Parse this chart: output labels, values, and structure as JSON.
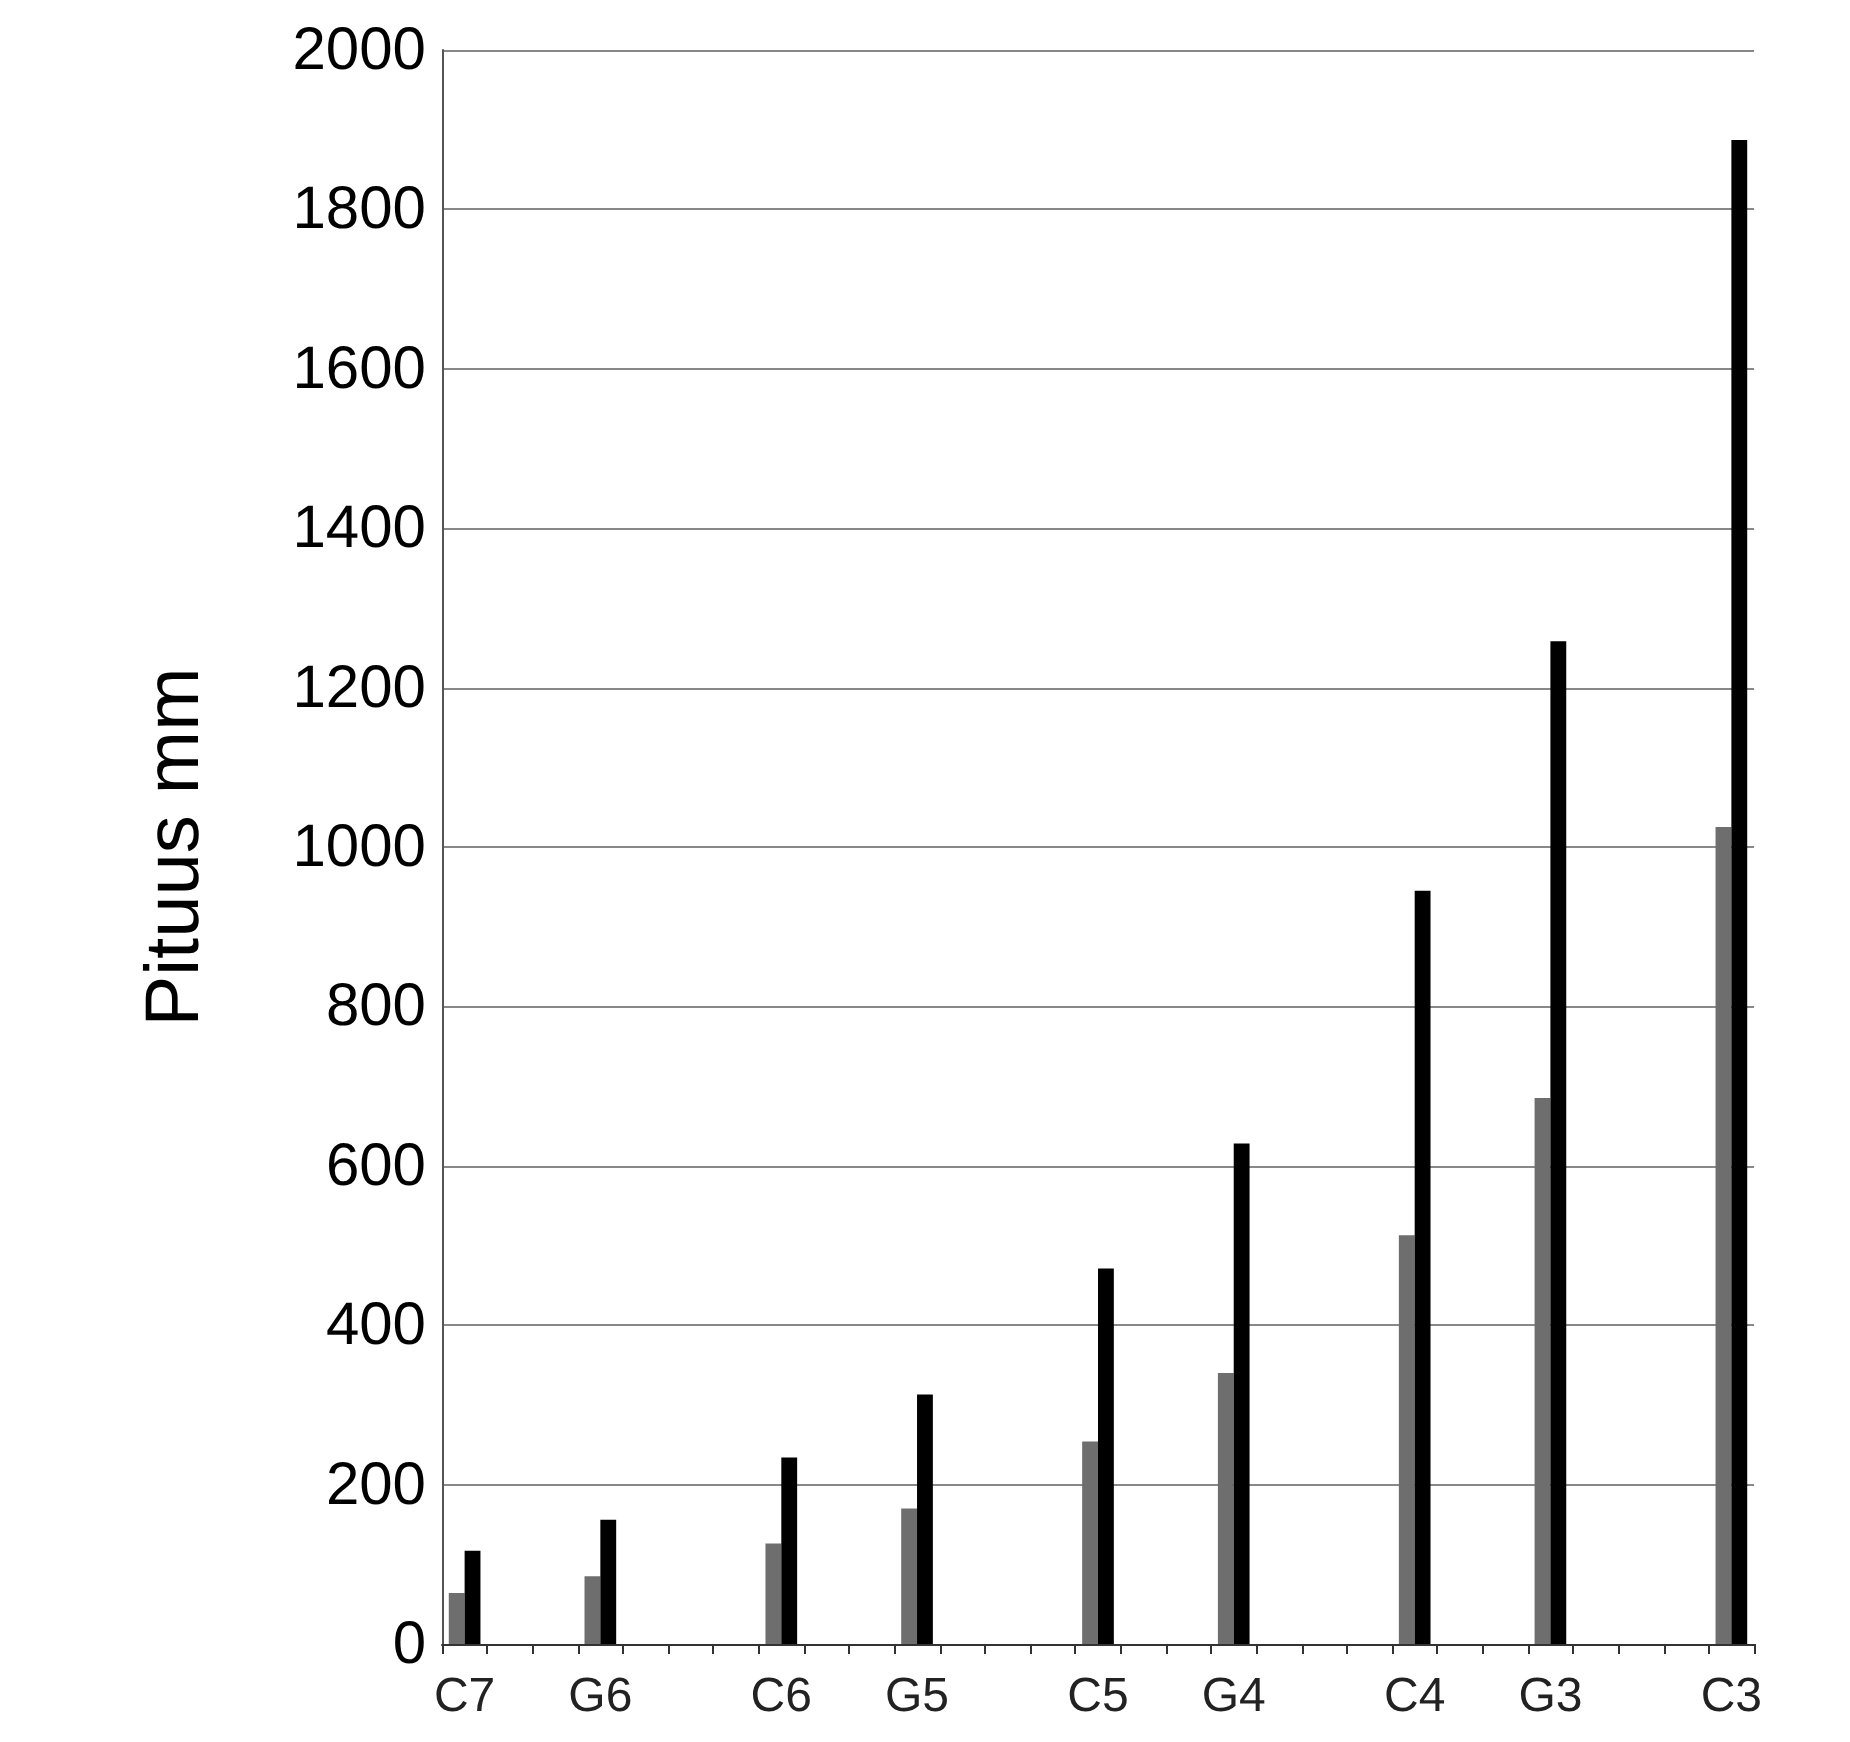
{
  "chart_data": {
    "type": "bar",
    "ylabel": "Pituus mm",
    "categories": [
      "C7",
      null,
      null,
      "G6",
      null,
      null,
      null,
      "C6",
      null,
      null,
      "G5",
      null,
      null,
      null,
      "C5",
      null,
      null,
      "G4",
      null,
      null,
      null,
      "C4",
      null,
      null,
      "G3",
      null,
      null,
      null,
      "C3"
    ],
    "series": [
      {
        "color": "#6e6e6e",
        "values": [
          64,
          null,
          null,
          85,
          null,
          null,
          null,
          126,
          null,
          null,
          170,
          null,
          null,
          null,
          254,
          null,
          null,
          340,
          null,
          null,
          null,
          513,
          null,
          null,
          685,
          null,
          null,
          null,
          1025
        ]
      },
      {
        "color": "#000000",
        "values": [
          117,
          null,
          null,
          156,
          null,
          null,
          null,
          234,
          null,
          null,
          313,
          null,
          null,
          null,
          471,
          null,
          null,
          628,
          null,
          null,
          null,
          945,
          null,
          null,
          1258,
          null,
          null,
          null,
          1887
        ]
      }
    ],
    "ylim": [
      0,
      2000
    ],
    "yticks": [
      0,
      200,
      400,
      600,
      800,
      1000,
      1200,
      1400,
      1600,
      1800,
      2000
    ],
    "grid": "y"
  }
}
